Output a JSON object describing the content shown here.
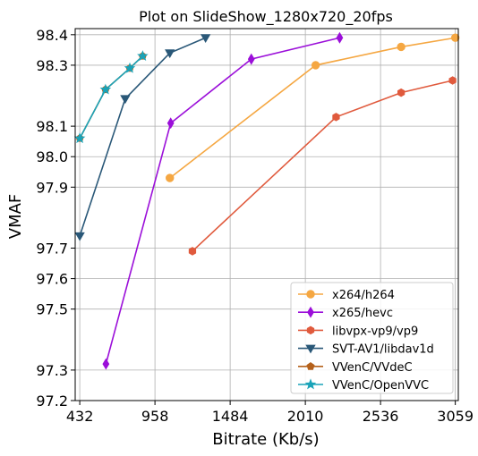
{
  "chart_data": {
    "type": "line",
    "title": "Plot on SlideShow_1280x720_20fps",
    "xlabel": "Bitrate (Kb/s)",
    "ylabel": "VMAF",
    "xlim": [
      400,
      3080
    ],
    "ylim": [
      97.2,
      98.42
    ],
    "xticks": [
      432,
      958,
      1484,
      2010,
      2536,
      3059
    ],
    "xtick_labels": [
      "432",
      "958",
      "1484",
      "2010",
      "2536",
      "3059"
    ],
    "yticks": [
      97.2,
      97.3,
      97.5,
      97.6,
      97.7,
      97.9,
      98.0,
      98.1,
      98.3,
      98.4
    ],
    "ytick_labels": [
      "97.2",
      "97.3",
      "97.5",
      "97.6",
      "97.7",
      "97.9",
      "98.0",
      "98.1",
      "98.3",
      "98.4"
    ],
    "grid": true,
    "legend_position": "bottom-right",
    "series": [
      {
        "name": "x264/h264",
        "color": "#f5a742",
        "marker": "circle",
        "x": [
          1062,
          2082,
          2680,
          3059
        ],
        "y": [
          97.93,
          98.3,
          98.36,
          98.39
        ]
      },
      {
        "name": "x265/hevc",
        "color": "#9b0fd9",
        "marker": "diamond",
        "x": [
          615,
          1068,
          1632,
          2250
        ],
        "y": [
          97.32,
          98.11,
          98.32,
          98.39
        ]
      },
      {
        "name": "libvpx-vp9/vp9",
        "color": "#e05a3d",
        "marker": "hexagon",
        "x": [
          1220,
          2225,
          2680,
          3040
        ],
        "y": [
          97.69,
          98.13,
          98.21,
          98.25
        ]
      },
      {
        "name": "SVT-AV1/libdav1d",
        "color": "#2a5878",
        "marker": "triangle-down",
        "x": [
          432,
          750,
          1062,
          1312
        ],
        "y": [
          97.74,
          98.19,
          98.34,
          98.39
        ]
      },
      {
        "name": "VVenC/VVdeC",
        "color": "#b5611b",
        "marker": "pentagon",
        "x": [
          432,
          612,
          782,
          872
        ],
        "y": [
          98.06,
          98.22,
          98.29,
          98.33
        ]
      },
      {
        "name": "VVenC/OpenVVC",
        "color": "#1aa3b8",
        "marker": "star",
        "x": [
          432,
          612,
          782,
          872
        ],
        "y": [
          98.06,
          98.22,
          98.29,
          98.33
        ]
      }
    ]
  }
}
